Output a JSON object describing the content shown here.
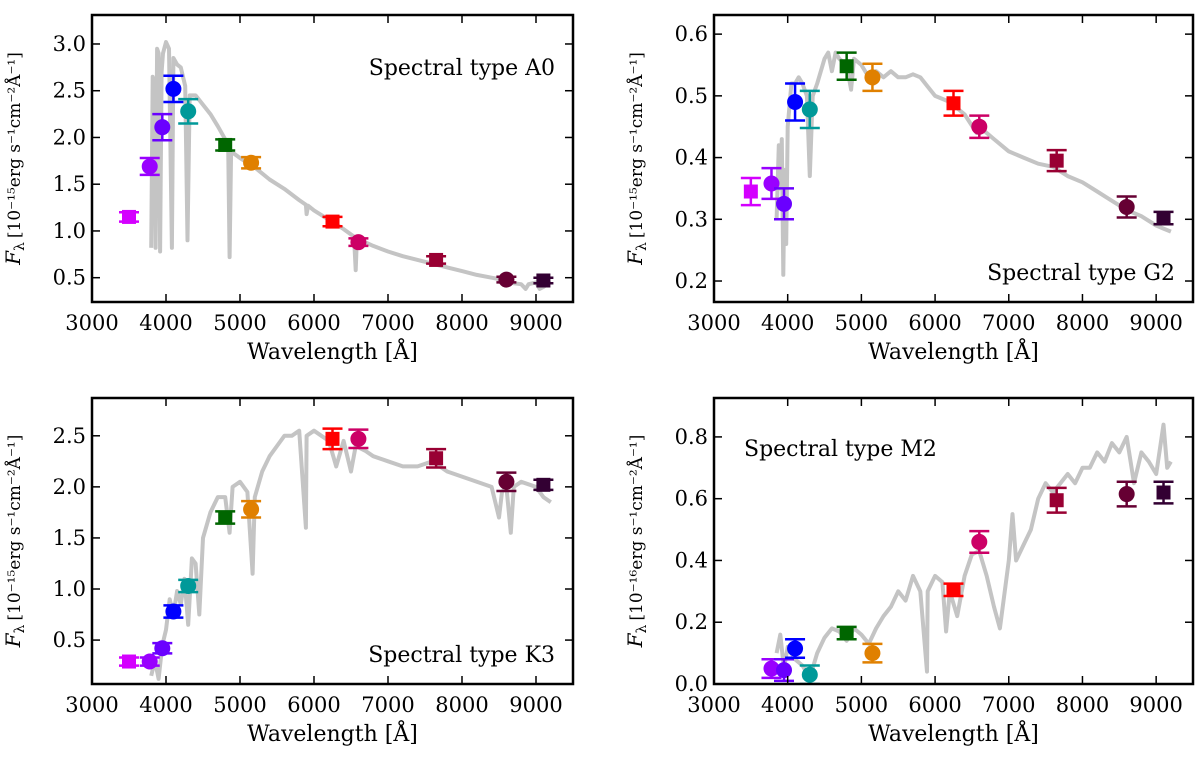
{
  "figure": {
    "layout": "2x2 grid",
    "spectrum_color": "#c4c4c4",
    "filter_colors": [
      "#d400ff",
      "#9900ff",
      "#6a00ff",
      "#0000ff",
      "#009999",
      "#006600",
      "#e08000",
      "#ff0000",
      "#cc0066",
      "#990033",
      "#660033",
      "#330033"
    ],
    "filter_wavelengths": [
      3500,
      3780,
      3950,
      4100,
      4300,
      4800,
      5150,
      6250,
      6600,
      7650,
      8600,
      9100
    ],
    "filter_markers": [
      "square",
      "circle",
      "circle",
      "circle",
      "circle",
      "square",
      "circle",
      "square",
      "circle",
      "square",
      "circle",
      "square"
    ]
  },
  "chart_data": [
    {
      "type": "scatter",
      "id": "A0",
      "annotation": "Spectral type A0",
      "annotation_position": "top-right",
      "xlabel": "Wavelength [Å]",
      "ylabel_main": "F",
      "ylabel_sub": "λ",
      "ylabel_unit": "[10⁻¹⁵erg s⁻¹cm⁻²Å⁻¹]",
      "xlim": [
        3000,
        9500
      ],
      "ylim": [
        0.24,
        3.31
      ],
      "xticks": [
        3000,
        4000,
        5000,
        6000,
        7000,
        8000,
        9000
      ],
      "xtick_labels": [
        "3000",
        "4000",
        "5000",
        "6000",
        "7000",
        "8000",
        "9000"
      ],
      "yticks": [
        0.5,
        1.0,
        1.5,
        2.0,
        2.5,
        3.0
      ],
      "ytick_labels": [
        "0.5",
        "1.0",
        "1.5",
        "2.0",
        "2.5",
        "3.0"
      ],
      "points": {
        "y": [
          1.15,
          1.69,
          2.11,
          2.52,
          2.28,
          1.92,
          1.73,
          1.1,
          0.88,
          0.69,
          0.48,
          0.47
        ],
        "err": [
          0.05,
          0.09,
          0.14,
          0.14,
          0.13,
          0.06,
          0.06,
          0.05,
          0.04,
          0.04,
          0.03,
          0.03
        ]
      },
      "spectrum": [
        [
          3800,
          0.82
        ],
        [
          3820,
          2.65
        ],
        [
          3840,
          2.6
        ],
        [
          3860,
          0.82
        ],
        [
          3880,
          2.95
        ],
        [
          3900,
          2.9
        ],
        [
          3920,
          0.78
        ],
        [
          3940,
          2.7
        ],
        [
          3960,
          2.9
        ],
        [
          4000,
          3.02
        ],
        [
          4040,
          2.95
        ],
        [
          4080,
          0.82
        ],
        [
          4100,
          2.85
        ],
        [
          4150,
          2.78
        ],
        [
          4200,
          2.75
        ],
        [
          4260,
          2.55
        ],
        [
          4290,
          0.9
        ],
        [
          4320,
          2.45
        ],
        [
          4400,
          2.45
        ],
        [
          4500,
          2.35
        ],
        [
          4600,
          2.25
        ],
        [
          4700,
          2.12
        ],
        [
          4800,
          1.98
        ],
        [
          4840,
          1.9
        ],
        [
          4860,
          0.72
        ],
        [
          4880,
          1.85
        ],
        [
          5000,
          1.78
        ],
        [
          5200,
          1.68
        ],
        [
          5400,
          1.55
        ],
        [
          5600,
          1.45
        ],
        [
          5800,
          1.33
        ],
        [
          5890,
          1.28
        ],
        [
          5900,
          1.18
        ],
        [
          5920,
          1.27
        ],
        [
          6000,
          1.22
        ],
        [
          6200,
          1.12
        ],
        [
          6400,
          1.02
        ],
        [
          6540,
          0.94
        ],
        [
          6563,
          0.58
        ],
        [
          6580,
          0.92
        ],
        [
          6800,
          0.84
        ],
        [
          7000,
          0.78
        ],
        [
          7200,
          0.73
        ],
        [
          7400,
          0.69
        ],
        [
          7600,
          0.65
        ],
        [
          7800,
          0.61
        ],
        [
          8000,
          0.57
        ],
        [
          8200,
          0.53
        ],
        [
          8400,
          0.5
        ],
        [
          8600,
          0.47
        ],
        [
          8700,
          0.44
        ],
        [
          8800,
          0.43
        ],
        [
          8860,
          0.38
        ],
        [
          8900,
          0.43
        ],
        [
          9000,
          0.45
        ],
        [
          9050,
          0.38
        ],
        [
          9100,
          0.4
        ],
        [
          9200,
          0.46
        ]
      ]
    },
    {
      "type": "scatter",
      "id": "G2",
      "annotation": "Spectral type G2",
      "annotation_position": "bottom-right",
      "xlabel": "Wavelength [Å]",
      "ylabel_main": "F",
      "ylabel_sub": "λ",
      "ylabel_unit": "[10⁻¹⁵erg s⁻¹cm⁻²Å⁻¹]",
      "xlim": [
        3000,
        9500
      ],
      "ylim": [
        0.166,
        0.631
      ],
      "xticks": [
        3000,
        4000,
        5000,
        6000,
        7000,
        8000,
        9000
      ],
      "xtick_labels": [
        "3000",
        "4000",
        "5000",
        "6000",
        "7000",
        "8000",
        "9000"
      ],
      "yticks": [
        0.2,
        0.3,
        0.4,
        0.5,
        0.6
      ],
      "ytick_labels": [
        "0.2",
        "0.3",
        "0.4",
        "0.5",
        "0.6"
      ],
      "points": {
        "y": [
          0.345,
          0.358,
          0.325,
          0.49,
          0.478,
          0.548,
          0.53,
          0.488,
          0.45,
          0.395,
          0.32,
          0.302
        ],
        "err": [
          0.022,
          0.025,
          0.025,
          0.03,
          0.03,
          0.022,
          0.022,
          0.02,
          0.018,
          0.017,
          0.017,
          0.01
        ]
      },
      "spectrum": [
        [
          3850,
          0.3
        ],
        [
          3880,
          0.42
        ],
        [
          3900,
          0.35
        ],
        [
          3920,
          0.43
        ],
        [
          3940,
          0.21
        ],
        [
          3960,
          0.38
        ],
        [
          3980,
          0.26
        ],
        [
          4000,
          0.45
        ],
        [
          4050,
          0.52
        ],
        [
          4100,
          0.52
        ],
        [
          4150,
          0.53
        ],
        [
          4200,
          0.52
        ],
        [
          4260,
          0.5
        ],
        [
          4300,
          0.37
        ],
        [
          4340,
          0.5
        ],
        [
          4400,
          0.52
        ],
        [
          4500,
          0.56
        ],
        [
          4550,
          0.57
        ],
        [
          4600,
          0.54
        ],
        [
          4650,
          0.57
        ],
        [
          4700,
          0.56
        ],
        [
          4800,
          0.55
        ],
        [
          4860,
          0.51
        ],
        [
          4900,
          0.56
        ],
        [
          5000,
          0.55
        ],
        [
          5100,
          0.53
        ],
        [
          5170,
          0.52
        ],
        [
          5200,
          0.54
        ],
        [
          5300,
          0.53
        ],
        [
          5400,
          0.54
        ],
        [
          5500,
          0.53
        ],
        [
          5600,
          0.53
        ],
        [
          5700,
          0.535
        ],
        [
          5800,
          0.53
        ],
        [
          5900,
          0.515
        ],
        [
          6000,
          0.5
        ],
        [
          6200,
          0.49
        ],
        [
          6400,
          0.47
        ],
        [
          6563,
          0.44
        ],
        [
          6600,
          0.45
        ],
        [
          6800,
          0.43
        ],
        [
          7000,
          0.41
        ],
        [
          7200,
          0.4
        ],
        [
          7400,
          0.39
        ],
        [
          7600,
          0.385
        ],
        [
          7800,
          0.37
        ],
        [
          8000,
          0.36
        ],
        [
          8200,
          0.345
        ],
        [
          8400,
          0.33
        ],
        [
          8600,
          0.315
        ],
        [
          8800,
          0.305
        ],
        [
          9000,
          0.29
        ],
        [
          9100,
          0.285
        ],
        [
          9200,
          0.28
        ]
      ]
    },
    {
      "type": "scatter",
      "id": "K3",
      "annotation": "Spectral type K3",
      "annotation_position": "bottom-right",
      "xlabel": "Wavelength [Å]",
      "ylabel_main": "F",
      "ylabel_sub": "λ",
      "ylabel_unit": "[10⁻¹⁵erg s⁻¹cm⁻²Å⁻¹]",
      "xlim": [
        3000,
        9500
      ],
      "ylim": [
        0.07,
        2.87
      ],
      "xticks": [
        3000,
        4000,
        5000,
        6000,
        7000,
        8000,
        9000
      ],
      "xtick_labels": [
        "3000",
        "4000",
        "5000",
        "6000",
        "7000",
        "8000",
        "9000"
      ],
      "yticks": [
        0.5,
        1.0,
        1.5,
        2.0,
        2.5
      ],
      "ytick_labels": [
        "0.5",
        "1.0",
        "1.5",
        "2.0",
        "2.5"
      ],
      "points": {
        "y": [
          0.29,
          0.29,
          0.42,
          0.78,
          1.03,
          1.7,
          1.78,
          2.47,
          2.47,
          2.28,
          2.05,
          2.02
        ],
        "err": [
          0.04,
          0.04,
          0.05,
          0.06,
          0.06,
          0.06,
          0.08,
          0.1,
          0.09,
          0.09,
          0.09,
          0.05
        ]
      },
      "spectrum": [
        [
          3800,
          0.15
        ],
        [
          3850,
          0.3
        ],
        [
          3900,
          0.12
        ],
        [
          3950,
          0.45
        ],
        [
          4000,
          0.6
        ],
        [
          4050,
          0.9
        ],
        [
          4100,
          0.75
        ],
        [
          4150,
          0.98
        ],
        [
          4200,
          0.85
        ],
        [
          4250,
          1.1
        ],
        [
          4300,
          0.65
        ],
        [
          4350,
          1.3
        ],
        [
          4400,
          1.25
        ],
        [
          4450,
          0.75
        ],
        [
          4500,
          1.5
        ],
        [
          4600,
          1.75
        ],
        [
          4700,
          1.9
        ],
        [
          4800,
          1.9
        ],
        [
          4860,
          1.55
        ],
        [
          4900,
          2.0
        ],
        [
          5000,
          2.05
        ],
        [
          5100,
          1.95
        ],
        [
          5170,
          1.15
        ],
        [
          5200,
          1.9
        ],
        [
          5300,
          2.15
        ],
        [
          5400,
          2.3
        ],
        [
          5500,
          2.4
        ],
        [
          5600,
          2.5
        ],
        [
          5700,
          2.5
        ],
        [
          5800,
          2.55
        ],
        [
          5890,
          1.6
        ],
        [
          5900,
          2.5
        ],
        [
          6000,
          2.55
        ],
        [
          6100,
          2.5
        ],
        [
          6200,
          2.45
        ],
        [
          6300,
          2.2
        ],
        [
          6400,
          2.45
        ],
        [
          6500,
          2.15
        ],
        [
          6563,
          2.4
        ],
        [
          6700,
          2.35
        ],
        [
          6800,
          2.3
        ],
        [
          7000,
          2.25
        ],
        [
          7200,
          2.2
        ],
        [
          7400,
          2.2
        ],
        [
          7600,
          2.25
        ],
        [
          7800,
          2.15
        ],
        [
          8000,
          2.1
        ],
        [
          8200,
          2.05
        ],
        [
          8400,
          2.0
        ],
        [
          8500,
          1.7
        ],
        [
          8540,
          1.95
        ],
        [
          8600,
          2.0
        ],
        [
          8660,
          1.55
        ],
        [
          8700,
          2.0
        ],
        [
          8800,
          2.05
        ],
        [
          9000,
          2.0
        ],
        [
          9100,
          1.9
        ],
        [
          9200,
          1.85
        ]
      ]
    },
    {
      "type": "scatter",
      "id": "M2",
      "annotation": "Spectral type M2",
      "annotation_position": "top-left",
      "xlabel": "Wavelength [Å]",
      "ylabel_main": "F",
      "ylabel_sub": "λ",
      "ylabel_unit": "[10⁻¹⁶erg s⁻¹cm⁻²Å⁻¹]",
      "xlim": [
        3000,
        9500
      ],
      "ylim": [
        0.0,
        0.926
      ],
      "xticks": [
        3000,
        4000,
        5000,
        6000,
        7000,
        8000,
        9000
      ],
      "xtick_labels": [
        "3000",
        "4000",
        "5000",
        "6000",
        "7000",
        "8000",
        "9000"
      ],
      "yticks": [
        0.0,
        0.2,
        0.4,
        0.6,
        0.8
      ],
      "ytick_labels": [
        "0.0",
        "0.2",
        "0.4",
        "0.6",
        "0.8"
      ],
      "points": {
        "y": [
          null,
          0.05,
          0.045,
          0.115,
          0.03,
          0.165,
          0.1,
          0.305,
          0.46,
          0.595,
          0.615,
          0.62
        ],
        "err": [
          null,
          0.03,
          0.035,
          0.03,
          0.03,
          0.02,
          0.03,
          0.02,
          0.035,
          0.04,
          0.04,
          0.035
        ]
      },
      "spectrum": [
        [
          3850,
          0.1
        ],
        [
          3900,
          0.16
        ],
        [
          3950,
          0.05
        ],
        [
          4000,
          0.12
        ],
        [
          4100,
          0.08
        ],
        [
          4200,
          0.06
        ],
        [
          4300,
          0.02
        ],
        [
          4400,
          0.1
        ],
        [
          4500,
          0.15
        ],
        [
          4600,
          0.18
        ],
        [
          4700,
          0.17
        ],
        [
          4800,
          0.14
        ],
        [
          4900,
          0.18
        ],
        [
          5000,
          0.16
        ],
        [
          5100,
          0.13
        ],
        [
          5200,
          0.18
        ],
        [
          5300,
          0.22
        ],
        [
          5400,
          0.25
        ],
        [
          5500,
          0.3
        ],
        [
          5600,
          0.27
        ],
        [
          5700,
          0.35
        ],
        [
          5800,
          0.3
        ],
        [
          5890,
          0.04
        ],
        [
          5900,
          0.3
        ],
        [
          6000,
          0.35
        ],
        [
          6100,
          0.33
        ],
        [
          6150,
          0.17
        ],
        [
          6200,
          0.3
        ],
        [
          6300,
          0.22
        ],
        [
          6400,
          0.35
        ],
        [
          6500,
          0.42
        ],
        [
          6600,
          0.43
        ],
        [
          6700,
          0.35
        ],
        [
          6800,
          0.25
        ],
        [
          6880,
          0.18
        ],
        [
          7000,
          0.4
        ],
        [
          7050,
          0.55
        ],
        [
          7100,
          0.4
        ],
        [
          7200,
          0.45
        ],
        [
          7300,
          0.5
        ],
        [
          7400,
          0.6
        ],
        [
          7500,
          0.65
        ],
        [
          7600,
          0.62
        ],
        [
          7700,
          0.65
        ],
        [
          7800,
          0.68
        ],
        [
          7900,
          0.65
        ],
        [
          8000,
          0.7
        ],
        [
          8100,
          0.7
        ],
        [
          8200,
          0.75
        ],
        [
          8300,
          0.72
        ],
        [
          8400,
          0.78
        ],
        [
          8500,
          0.75
        ],
        [
          8600,
          0.8
        ],
        [
          8700,
          0.65
        ],
        [
          8800,
          0.75
        ],
        [
          8900,
          0.72
        ],
        [
          9000,
          0.68
        ],
        [
          9100,
          0.84
        ],
        [
          9150,
          0.7
        ],
        [
          9200,
          0.72
        ]
      ]
    }
  ]
}
